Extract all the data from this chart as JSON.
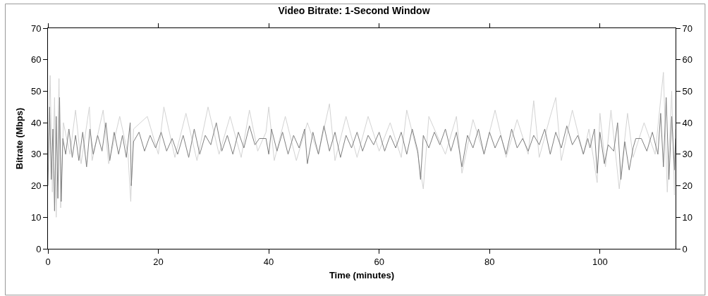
{
  "chart_data": {
    "type": "line",
    "title": "Video Bitrate: 1-Second Window",
    "xlabel": "Time (minutes)",
    "ylabel": "Bitrate (Mbps)",
    "xlim": [
      0,
      113.7
    ],
    "xticks": [
      0,
      20,
      40,
      60,
      80,
      100
    ],
    "ylim": [
      0,
      70
    ],
    "yticks": [
      0,
      10,
      20,
      30,
      40,
      50,
      60,
      70
    ],
    "y2lim": [
      0,
      70
    ],
    "y2ticks": [
      0,
      10,
      20,
      30,
      40,
      50,
      60,
      70
    ],
    "marker": "none",
    "line_style": "solid",
    "series": [
      {
        "color": "#d3d3d3",
        "x": [
          0,
          0.4,
          0.8,
          1.2,
          1.5,
          2,
          2.3,
          2.8,
          4,
          5,
          6,
          7.5,
          8,
          10,
          11,
          13,
          14.5,
          15,
          15.5,
          18,
          20,
          21,
          23,
          25,
          27,
          29,
          31,
          33,
          35,
          36.5,
          38,
          39.5,
          40,
          41,
          43,
          45,
          47,
          49,
          51,
          52,
          54,
          56,
          58,
          60,
          62,
          64,
          65,
          67,
          68,
          69,
          72,
          74,
          75,
          77,
          79,
          81,
          83,
          85,
          87,
          88,
          89,
          91,
          92,
          93,
          95,
          97,
          98,
          99.5,
          100,
          101,
          102,
          103.5,
          105,
          106,
          108,
          110,
          111.5,
          112.2,
          113,
          113.5,
          113.7
        ],
        "values": [
          28,
          55,
          18,
          48,
          10,
          54,
          13,
          40,
          30,
          44,
          27,
          45,
          28,
          44,
          27,
          42,
          30,
          15,
          38,
          42,
          30,
          45,
          29,
          43,
          28,
          45,
          30,
          42,
          29,
          44,
          31,
          37,
          45,
          28,
          42,
          28,
          40,
          30,
          46,
          28,
          42,
          29,
          42,
          31,
          40,
          29,
          44,
          30,
          19,
          42,
          30,
          42,
          24,
          41,
          30,
          44,
          29,
          41,
          30,
          47,
          29,
          42,
          48,
          28,
          44,
          30,
          38,
          21,
          43,
          26,
          44,
          19,
          43,
          29,
          40,
          30,
          56,
          18,
          50,
          17,
          38
        ]
      },
      {
        "color": "#7f7f7f",
        "x": [
          0,
          0.3,
          0.6,
          0.9,
          1.2,
          1.5,
          1.8,
          2.1,
          2.4,
          2.7,
          3.2,
          3.8,
          4.4,
          5,
          5.6,
          6.3,
          7,
          7.6,
          8.2,
          9,
          9.8,
          10.5,
          11.2,
          12,
          12.8,
          13.5,
          14.2,
          14.9,
          15.1,
          15.5,
          16.5,
          17.5,
          18.5,
          19.5,
          20.5,
          21.5,
          22.5,
          23.5,
          24.5,
          25.5,
          26.5,
          27.5,
          28.5,
          29.5,
          30.5,
          31.5,
          32.5,
          33.5,
          34.5,
          35.5,
          36.5,
          37.5,
          38.3,
          39.5,
          40,
          40.5,
          41.5,
          42.5,
          43.5,
          44.5,
          45.5,
          46.5,
          47,
          48,
          49,
          50,
          51,
          52,
          53,
          54,
          55,
          56,
          57,
          58,
          59,
          60,
          61,
          62,
          63,
          64,
          65,
          66,
          67,
          67.5,
          68,
          69,
          70,
          71,
          72,
          73,
          74,
          75,
          76,
          77,
          78,
          79,
          80,
          81,
          82,
          83,
          84,
          85,
          86,
          87,
          88,
          89,
          90,
          91,
          92,
          93,
          94,
          95,
          96,
          97,
          97.8,
          98.2,
          99,
          99.5,
          100,
          100.8,
          101.5,
          102.5,
          103.2,
          103.8,
          104.5,
          105.3,
          106,
          106.5,
          107.5,
          108.5,
          109.5,
          110.5,
          111,
          111.5,
          112,
          112.5,
          113,
          113.5,
          113.7
        ],
        "values": [
          20,
          45,
          22,
          38,
          12,
          42,
          16,
          48,
          15,
          35,
          30,
          38,
          29,
          36,
          28,
          37,
          26,
          38,
          30,
          36,
          31,
          40,
          28,
          37,
          30,
          36,
          29,
          40,
          20,
          34,
          37,
          31,
          36,
          32,
          37,
          31,
          35,
          30,
          36,
          29,
          38,
          30,
          36,
          33,
          40,
          31,
          36,
          30,
          37,
          32,
          39,
          33,
          35,
          35,
          30,
          38,
          31,
          37,
          30,
          36,
          32,
          38,
          27,
          37,
          30,
          39,
          31,
          37,
          29,
          36,
          32,
          37,
          31,
          36,
          33,
          37,
          31,
          36,
          32,
          37,
          30,
          38,
          31,
          22,
          36,
          32,
          37,
          33,
          38,
          31,
          37,
          26,
          36,
          32,
          38,
          30,
          37,
          32,
          36,
          30,
          38,
          32,
          35,
          31,
          36,
          33,
          38,
          30,
          37,
          32,
          39,
          33,
          36,
          30,
          35,
          32,
          38,
          24,
          37,
          27,
          33,
          31,
          40,
          22,
          34,
          25,
          32,
          35,
          35,
          31,
          37,
          30,
          43,
          26,
          48,
          22,
          42,
          25,
          35
        ]
      }
    ]
  }
}
